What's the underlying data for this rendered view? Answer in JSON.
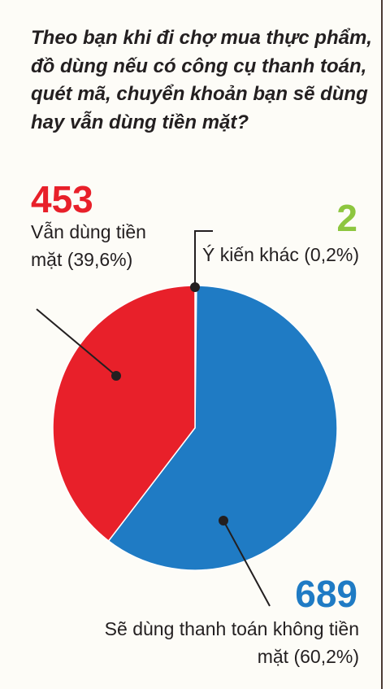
{
  "chart_data": {
    "type": "pie",
    "title": "Theo bạn khi đi chợ mua thực phẩm, đồ dùng nếu có công cụ thanh toán, quét mã, chuyển khoản bạn sẽ dùng hay vẫn dùng tiền mặt?",
    "categories": [
      "Ý kiến khác (0,2%)",
      "Sẽ dùng thanh toán không tiền mặt (60,2%)",
      "Vẫn dùng tiền mặt (39,6%)"
    ],
    "values": [
      2,
      689,
      453
    ],
    "colors": [
      "#eeeeee",
      "#1f7bc4",
      "#e8202a"
    ],
    "value_colors": [
      "#8dc63f",
      "#1f7bc4",
      "#e8202a"
    ]
  }
}
